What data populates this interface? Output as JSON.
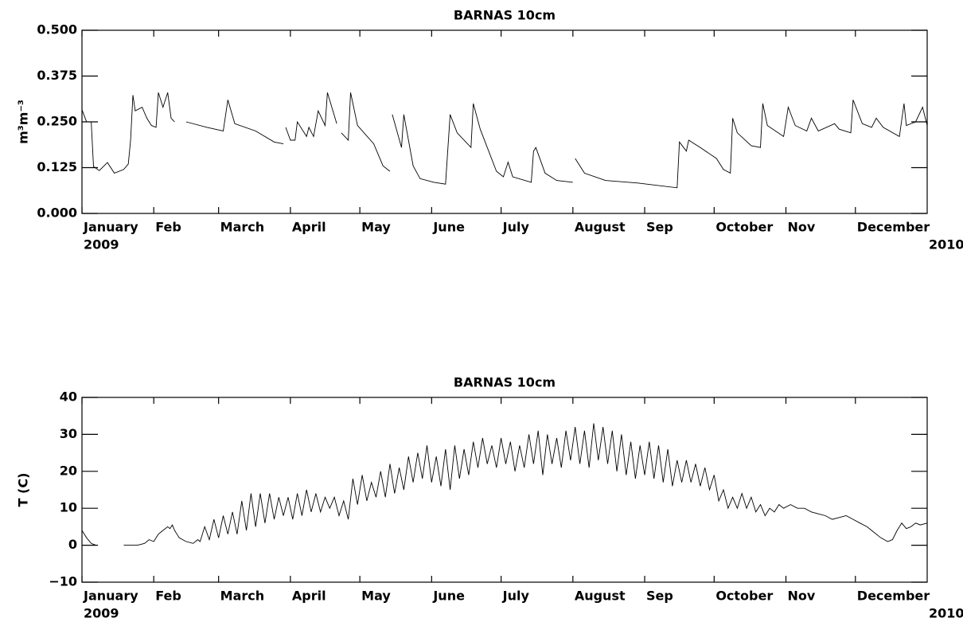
{
  "chart_data": [
    {
      "type": "line",
      "title": "BARNAS 10cm",
      "y_label": "m³m⁻³",
      "xlim": [
        0,
        365
      ],
      "xticks": [
        {
          "value": 0,
          "label": "January"
        },
        {
          "value": 31,
          "label": "Feb"
        },
        {
          "value": 59,
          "label": "March"
        },
        {
          "value": 90,
          "label": "April"
        },
        {
          "value": 120,
          "label": "May"
        },
        {
          "value": 151,
          "label": "June"
        },
        {
          "value": 181,
          "label": "July"
        },
        {
          "value": 212,
          "label": "August"
        },
        {
          "value": 243,
          "label": "Sep"
        },
        {
          "value": 273,
          "label": "October"
        },
        {
          "value": 304,
          "label": "Nov"
        },
        {
          "value": 334,
          "label": "December"
        }
      ],
      "year_labels": [
        {
          "value": 0,
          "label": "2009"
        },
        {
          "value": 365,
          "label": "2010"
        }
      ],
      "ylim": [
        0,
        0.5
      ],
      "yticks": [
        {
          "value": 0,
          "label": "0.000"
        },
        {
          "value": 0.125,
          "label": "0.125"
        },
        {
          "value": 0.25,
          "label": "0.250"
        },
        {
          "value": 0.375,
          "label": "0.375"
        },
        {
          "value": 0.5,
          "label": "0.500"
        }
      ],
      "color": "#000000",
      "x": [
        0,
        2,
        4,
        5,
        7.5,
        11,
        14,
        18,
        20,
        21,
        22,
        23,
        26,
        28,
        30,
        32,
        33,
        35,
        37,
        38.5,
        40,
        42,
        45,
        54,
        61,
        63,
        66,
        75,
        83,
        87,
        87.5,
        88,
        90,
        92,
        93,
        97,
        98,
        100,
        102,
        105,
        106,
        110,
        111,
        112,
        115,
        116,
        119,
        126,
        130,
        133,
        133.5,
        134,
        138,
        139,
        143,
        146,
        152,
        157,
        159,
        162,
        168,
        169,
        172,
        179,
        182,
        184,
        186,
        194,
        195,
        196,
        200,
        205,
        212,
        212.5,
        213,
        217,
        226,
        240,
        257,
        258,
        261,
        262,
        267,
        274,
        277,
        280,
        281,
        283,
        289,
        293,
        294,
        296,
        303,
        305,
        308,
        313,
        315,
        318,
        325,
        327,
        332,
        333,
        337,
        341,
        343,
        346,
        353,
        355,
        356,
        360,
        363,
        365
      ],
      "values": [
        0.283,
        0.25,
        0.25,
        0.128,
        0.117,
        0.139,
        0.11,
        0.12,
        0.135,
        0.2,
        0.323,
        0.28,
        0.29,
        0.26,
        0.24,
        0.235,
        0.33,
        0.29,
        0.33,
        0.26,
        0.25,
        null,
        0.25,
        0.235,
        0.225,
        0.31,
        0.245,
        0.225,
        0.195,
        0.19,
        null,
        0.235,
        0.2,
        0.2,
        0.25,
        0.21,
        0.235,
        0.21,
        0.28,
        0.24,
        0.33,
        0.245,
        null,
        0.22,
        0.2,
        0.33,
        0.24,
        0.19,
        0.13,
        0.115,
        null,
        0.27,
        0.18,
        0.27,
        0.13,
        0.095,
        0.085,
        0.08,
        0.27,
        0.22,
        0.18,
        0.3,
        0.23,
        0.115,
        0.1,
        0.14,
        0.1,
        0.085,
        0.17,
        0.18,
        0.11,
        0.09,
        0.085,
        null,
        0.15,
        0.11,
        0.09,
        0.083,
        0.07,
        0.195,
        0.17,
        0.2,
        0.18,
        0.15,
        0.12,
        0.11,
        0.26,
        0.22,
        0.185,
        0.18,
        0.3,
        0.24,
        0.21,
        0.29,
        0.24,
        0.225,
        0.26,
        0.225,
        0.245,
        0.23,
        0.22,
        0.31,
        0.245,
        0.235,
        0.26,
        0.235,
        0.21,
        0.3,
        0.24,
        0.25,
        0.29,
        0.24
      ]
    },
    {
      "type": "line",
      "title": "BARNAS 10cm",
      "y_label": "T (C)",
      "xlim": [
        0,
        365
      ],
      "xticks": [
        {
          "value": 0,
          "label": "January"
        },
        {
          "value": 31,
          "label": "Feb"
        },
        {
          "value": 59,
          "label": "March"
        },
        {
          "value": 90,
          "label": "April"
        },
        {
          "value": 120,
          "label": "May"
        },
        {
          "value": 151,
          "label": "June"
        },
        {
          "value": 181,
          "label": "July"
        },
        {
          "value": 212,
          "label": "August"
        },
        {
          "value": 243,
          "label": "Sep"
        },
        {
          "value": 273,
          "label": "October"
        },
        {
          "value": 304,
          "label": "Nov"
        },
        {
          "value": 334,
          "label": "December"
        }
      ],
      "year_labels": [
        {
          "value": 0,
          "label": "2009"
        },
        {
          "value": 365,
          "label": "2010"
        }
      ],
      "ylim": [
        -10,
        40
      ],
      "yticks": [
        {
          "value": -10,
          "label": "−10"
        },
        0,
        10,
        20,
        30,
        40
      ],
      "color": "#000000",
      "x": [
        0,
        2,
        4,
        6,
        7,
        18,
        24,
        27,
        29,
        31,
        33,
        35,
        37,
        38,
        39,
        40,
        41,
        42,
        45,
        48,
        50,
        51,
        53,
        55,
        57,
        59,
        61,
        63,
        65,
        67,
        69,
        71,
        73,
        75,
        77,
        79,
        81,
        83,
        85,
        87,
        89,
        91,
        93,
        95,
        97,
        99,
        101,
        103,
        105,
        107,
        109,
        111,
        113,
        115,
        117,
        119,
        121,
        123,
        125,
        127,
        129,
        131,
        133,
        135,
        137,
        139,
        141,
        143,
        145,
        147,
        149,
        151,
        153,
        155,
        157,
        159,
        161,
        163,
        165,
        167,
        169,
        171,
        173,
        175,
        177,
        179,
        181,
        183,
        185,
        187,
        189,
        191,
        193,
        195,
        197,
        199,
        201,
        203,
        205,
        207,
        209,
        211,
        213,
        215,
        217,
        219,
        221,
        223,
        225,
        227,
        229,
        231,
        233,
        235,
        237,
        239,
        241,
        243,
        245,
        247,
        249,
        251,
        253,
        255,
        257,
        259,
        261,
        263,
        265,
        267,
        269,
        271,
        273,
        275,
        277,
        279,
        281,
        283,
        285,
        287,
        289,
        291,
        293,
        295,
        297,
        299,
        301,
        303,
        306,
        309,
        312,
        315,
        318,
        321,
        324,
        327,
        330,
        333,
        336,
        339,
        342,
        345,
        348,
        350,
        352,
        354,
        356,
        358,
        360,
        362,
        365
      ],
      "values": [
        4,
        2,
        0.5,
        0,
        null,
        0,
        0,
        0.5,
        1.5,
        1,
        3,
        4,
        5,
        4.5,
        5.5,
        4,
        3,
        2,
        1,
        0.5,
        1.5,
        1,
        5,
        1.5,
        7,
        2,
        8,
        3,
        9,
        3,
        12,
        4,
        14,
        5,
        14,
        6,
        14,
        7,
        13,
        8,
        13,
        7,
        14,
        8,
        15,
        9,
        14,
        9,
        13,
        10,
        13,
        8,
        12,
        7,
        18,
        11,
        19,
        12,
        17,
        13,
        20,
        13,
        22,
        14,
        21,
        15,
        24,
        17,
        25,
        18,
        27,
        17,
        24,
        16,
        26,
        15,
        27,
        18,
        26,
        19,
        28,
        21,
        29,
        22,
        27,
        21,
        29,
        22,
        28,
        20,
        27,
        21,
        30,
        22,
        31,
        19,
        30,
        22,
        29,
        21,
        31,
        23,
        32,
        22,
        31,
        21,
        33,
        23,
        32,
        22,
        31,
        20,
        30,
        19,
        28,
        18,
        27,
        19,
        28,
        18,
        27,
        17,
        26,
        16,
        23,
        17,
        23,
        17,
        22,
        16,
        21,
        15,
        19,
        12,
        15,
        10,
        13,
        10,
        14,
        10,
        13,
        9,
        11,
        8,
        10,
        9,
        11,
        10,
        11,
        10,
        10,
        9,
        8.5,
        8,
        7,
        7.5,
        8,
        7,
        6,
        5,
        3.5,
        2,
        1,
        1.5,
        4,
        6,
        4.5,
        5,
        6,
        5.5,
        6
      ]
    }
  ]
}
